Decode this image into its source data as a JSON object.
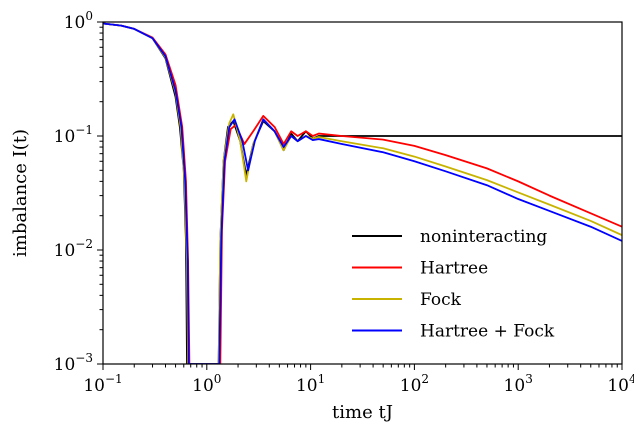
{
  "chart_data": {
    "type": "line",
    "xlabel": "time tJ",
    "ylabel": "imbalance I(t)",
    "xscale": "log",
    "yscale": "log",
    "xlim": [
      0.1,
      10000
    ],
    "ylim": [
      0.001,
      1
    ],
    "grid": false,
    "legend_position": "lower-right",
    "x_ticks": [
      {
        "value": 0.1,
        "base": "10",
        "exp": "−1"
      },
      {
        "value": 1,
        "base": "10",
        "exp": "0"
      },
      {
        "value": 10,
        "base": "10",
        "exp": "1"
      },
      {
        "value": 100,
        "base": "10",
        "exp": "2"
      },
      {
        "value": 1000,
        "base": "10",
        "exp": "3"
      },
      {
        "value": 10000,
        "base": "10",
        "exp": "4"
      }
    ],
    "y_ticks": [
      {
        "value": 0.001,
        "base": "10",
        "exp": "−3"
      },
      {
        "value": 0.01,
        "base": "10",
        "exp": "−2"
      },
      {
        "value": 0.1,
        "base": "10",
        "exp": "−1"
      },
      {
        "value": 1,
        "base": "10",
        "exp": "0"
      }
    ],
    "series": [
      {
        "name": "noninteracting",
        "color": "#000000",
        "points": [
          [
            0.1,
            0.97
          ],
          [
            0.15,
            0.93
          ],
          [
            0.2,
            0.87
          ],
          [
            0.3,
            0.72
          ],
          [
            0.4,
            0.48
          ],
          [
            0.5,
            0.22
          ],
          [
            0.55,
            0.12
          ],
          [
            0.6,
            0.05
          ],
          [
            0.63,
            0.012
          ],
          [
            0.645,
            0.001
          ],
          [
            1.3,
            0.001
          ],
          [
            1.35,
            0.012
          ],
          [
            1.45,
            0.06
          ],
          [
            1.6,
            0.12
          ],
          [
            1.8,
            0.135
          ],
          [
            2.1,
            0.09
          ],
          [
            2.4,
            0.045
          ],
          [
            2.8,
            0.085
          ],
          [
            3.5,
            0.135
          ],
          [
            4.5,
            0.11
          ],
          [
            5.5,
            0.075
          ],
          [
            6.5,
            0.105
          ],
          [
            7.5,
            0.09
          ],
          [
            9,
            0.11
          ],
          [
            10.5,
            0.095
          ],
          [
            12,
            0.1
          ],
          [
            20,
            0.1
          ],
          [
            100,
            0.1
          ],
          [
            1000,
            0.1
          ],
          [
            10000,
            0.1
          ]
        ]
      },
      {
        "name": "Hartree",
        "color": "#ff0000",
        "points": [
          [
            0.1,
            0.97
          ],
          [
            0.15,
            0.93
          ],
          [
            0.2,
            0.87
          ],
          [
            0.3,
            0.73
          ],
          [
            0.4,
            0.52
          ],
          [
            0.5,
            0.28
          ],
          [
            0.58,
            0.12
          ],
          [
            0.63,
            0.04
          ],
          [
            0.66,
            0.008
          ],
          [
            0.68,
            0.001
          ],
          [
            1.35,
            0.001
          ],
          [
            1.4,
            0.015
          ],
          [
            1.5,
            0.06
          ],
          [
            1.7,
            0.115
          ],
          [
            1.9,
            0.125
          ],
          [
            2.3,
            0.085
          ],
          [
            2.8,
            0.11
          ],
          [
            3.5,
            0.15
          ],
          [
            4.5,
            0.12
          ],
          [
            5.5,
            0.085
          ],
          [
            6.5,
            0.11
          ],
          [
            7.5,
            0.1
          ],
          [
            9,
            0.11
          ],
          [
            10.5,
            0.1
          ],
          [
            12,
            0.105
          ],
          [
            20,
            0.1
          ],
          [
            50,
            0.093
          ],
          [
            100,
            0.082
          ],
          [
            200,
            0.068
          ],
          [
            500,
            0.052
          ],
          [
            1000,
            0.04
          ],
          [
            2000,
            0.03
          ],
          [
            5000,
            0.021
          ],
          [
            10000,
            0.016
          ]
        ]
      },
      {
        "name": "Fock",
        "color": "#c8b400",
        "points": [
          [
            0.1,
            0.97
          ],
          [
            0.15,
            0.93
          ],
          [
            0.2,
            0.87
          ],
          [
            0.3,
            0.72
          ],
          [
            0.4,
            0.49
          ],
          [
            0.5,
            0.24
          ],
          [
            0.56,
            0.12
          ],
          [
            0.61,
            0.04
          ],
          [
            0.645,
            0.008
          ],
          [
            0.66,
            0.001
          ],
          [
            1.3,
            0.001
          ],
          [
            1.35,
            0.012
          ],
          [
            1.45,
            0.06
          ],
          [
            1.65,
            0.13
          ],
          [
            1.8,
            0.155
          ],
          [
            2.1,
            0.09
          ],
          [
            2.4,
            0.04
          ],
          [
            2.8,
            0.085
          ],
          [
            3.5,
            0.14
          ],
          [
            4.5,
            0.11
          ],
          [
            5.5,
            0.075
          ],
          [
            6.5,
            0.1
          ],
          [
            7.5,
            0.09
          ],
          [
            9,
            0.1
          ],
          [
            10.5,
            0.095
          ],
          [
            12,
            0.098
          ],
          [
            20,
            0.09
          ],
          [
            50,
            0.078
          ],
          [
            100,
            0.066
          ],
          [
            200,
            0.054
          ],
          [
            500,
            0.041
          ],
          [
            1000,
            0.032
          ],
          [
            2000,
            0.025
          ],
          [
            5000,
            0.018
          ],
          [
            10000,
            0.0135
          ]
        ]
      },
      {
        "name": "Hartree + Fock",
        "color": "#0000ff",
        "points": [
          [
            0.1,
            0.97
          ],
          [
            0.15,
            0.93
          ],
          [
            0.2,
            0.87
          ],
          [
            0.3,
            0.72
          ],
          [
            0.4,
            0.5
          ],
          [
            0.5,
            0.25
          ],
          [
            0.57,
            0.12
          ],
          [
            0.62,
            0.04
          ],
          [
            0.655,
            0.008
          ],
          [
            0.67,
            0.001
          ],
          [
            1.32,
            0.001
          ],
          [
            1.38,
            0.013
          ],
          [
            1.48,
            0.06
          ],
          [
            1.65,
            0.12
          ],
          [
            1.85,
            0.14
          ],
          [
            2.2,
            0.09
          ],
          [
            2.5,
            0.05
          ],
          [
            2.9,
            0.09
          ],
          [
            3.5,
            0.14
          ],
          [
            4.5,
            0.11
          ],
          [
            5.5,
            0.08
          ],
          [
            6.5,
            0.1
          ],
          [
            7.5,
            0.09
          ],
          [
            9,
            0.1
          ],
          [
            10.5,
            0.092
          ],
          [
            12,
            0.094
          ],
          [
            20,
            0.085
          ],
          [
            50,
            0.072
          ],
          [
            100,
            0.06
          ],
          [
            200,
            0.049
          ],
          [
            500,
            0.037
          ],
          [
            1000,
            0.028
          ],
          [
            2000,
            0.022
          ],
          [
            5000,
            0.016
          ],
          [
            10000,
            0.012
          ]
        ]
      }
    ]
  }
}
